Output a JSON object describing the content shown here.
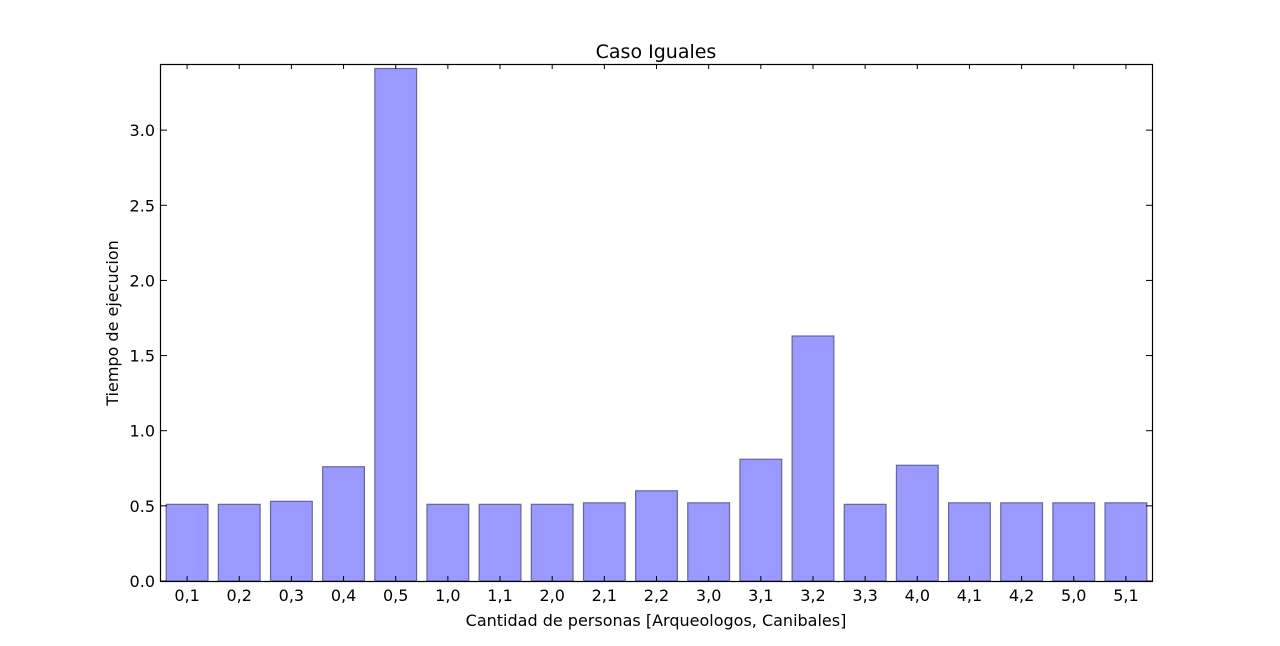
{
  "chart_data": {
    "type": "bar",
    "title": "Caso Iguales",
    "xlabel": "Cantidad de personas [Arqueologos, Canibales]",
    "ylabel": "Tiempo de ejecucion",
    "categories": [
      "0,1",
      "0,2",
      "0,3",
      "0,4",
      "0,5",
      "1,0",
      "1,1",
      "2,0",
      "2,1",
      "2,2",
      "3,0",
      "3,1",
      "3,2",
      "3,3",
      "4,0",
      "4,1",
      "4,2",
      "5,0",
      "5,1"
    ],
    "values": [
      0.51,
      0.51,
      0.53,
      0.76,
      3.41,
      0.51,
      0.51,
      0.51,
      0.52,
      0.6,
      0.52,
      0.81,
      1.63,
      0.51,
      0.77,
      0.52,
      0.52,
      0.52,
      0.52
    ],
    "ylim": [
      0,
      3.44
    ],
    "yticks": [
      "0.0",
      "0.5",
      "1.0",
      "1.5",
      "2.0",
      "2.5",
      "3.0"
    ],
    "grid": false,
    "bar_color": "#9999ff",
    "bar_edge_color": "#666699"
  }
}
